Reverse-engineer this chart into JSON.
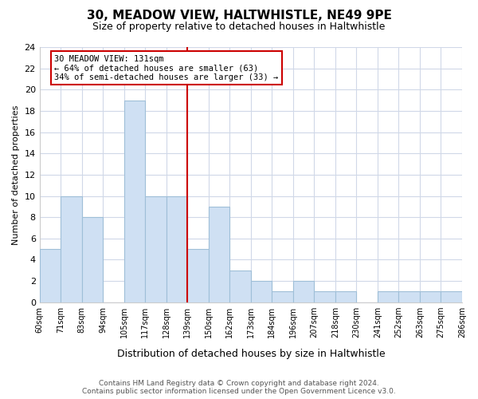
{
  "title": "30, MEADOW VIEW, HALTWHISTLE, NE49 9PE",
  "subtitle": "Size of property relative to detached houses in Haltwhistle",
  "xlabel": "Distribution of detached houses by size in Haltwhistle",
  "ylabel": "Number of detached properties",
  "bin_labels": [
    "60sqm",
    "71sqm",
    "83sqm",
    "94sqm",
    "105sqm",
    "117sqm",
    "128sqm",
    "139sqm",
    "150sqm",
    "162sqm",
    "173sqm",
    "184sqm",
    "196sqm",
    "207sqm",
    "218sqm",
    "230sqm",
    "241sqm",
    "252sqm",
    "263sqm",
    "275sqm",
    "286sqm"
  ],
  "counts": [
    5,
    10,
    8,
    0,
    19,
    10,
    10,
    5,
    9,
    3,
    2,
    1,
    2,
    1,
    1,
    0,
    1,
    1,
    1,
    1
  ],
  "bar_color": "#cfe0f3",
  "bar_edge_color": "#9fbfd8",
  "grid_color": "#d0d8e8",
  "vline_pos": 7.0,
  "vline_color": "#cc0000",
  "annotation_title": "30 MEADOW VIEW: 131sqm",
  "annotation_line1": "← 64% of detached houses are smaller (63)",
  "annotation_line2": "34% of semi-detached houses are larger (33) →",
  "annotation_box_color": "#ffffff",
  "annotation_box_edge": "#cc0000",
  "footer1": "Contains HM Land Registry data © Crown copyright and database right 2024.",
  "footer2": "Contains public sector information licensed under the Open Government Licence v3.0.",
  "ylim": [
    0,
    24
  ],
  "yticks": [
    0,
    2,
    4,
    6,
    8,
    10,
    12,
    14,
    16,
    18,
    20,
    22,
    24
  ]
}
